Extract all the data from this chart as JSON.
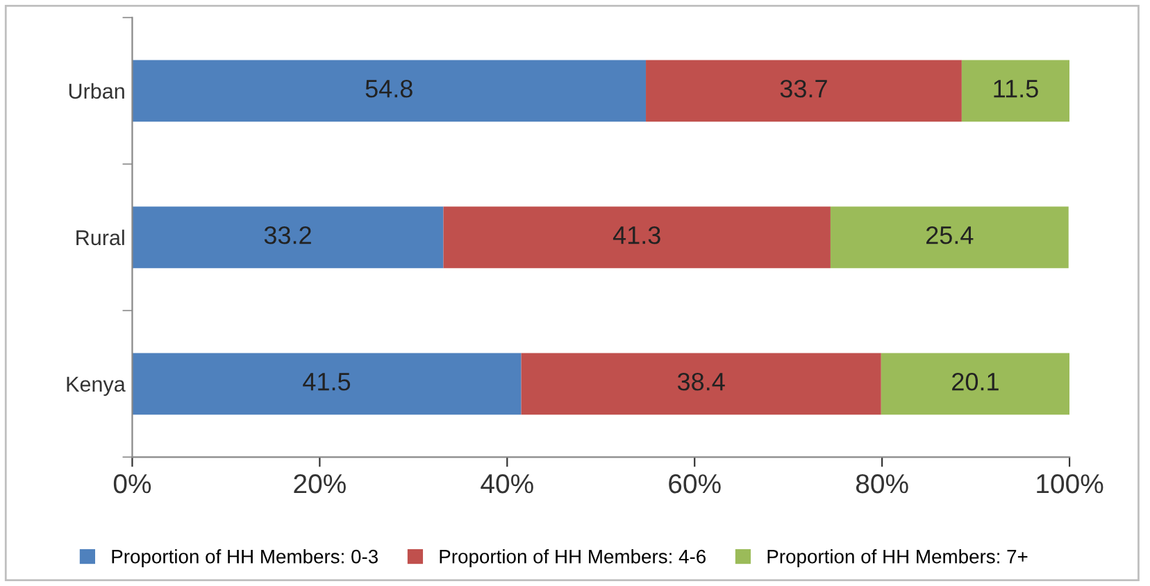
{
  "chart_data": {
    "type": "bar",
    "orientation": "horizontal",
    "stacked": true,
    "categories": [
      "Urban",
      "Rural",
      "Kenya"
    ],
    "series": [
      {
        "name": "Proportion of HH Members: 0-3",
        "color": "#4f81bd",
        "values": [
          54.8,
          33.2,
          41.5
        ]
      },
      {
        "name": "Proportion of HH Members: 4-6",
        "color": "#c0504d",
        "values": [
          33.7,
          41.3,
          38.4
        ]
      },
      {
        "name": "Proportion of HH Members: 7+",
        "color": "#9bbb59",
        "values": [
          11.5,
          25.4,
          20.1
        ]
      }
    ],
    "xlim": [
      0,
      100
    ],
    "xticks": [
      {
        "value": 0,
        "label": "0%"
      },
      {
        "value": 20,
        "label": "20%"
      },
      {
        "value": 40,
        "label": "40%"
      },
      {
        "value": 60,
        "label": "60%"
      },
      {
        "value": 80,
        "label": "80%"
      },
      {
        "value": 100,
        "label": "100%"
      }
    ],
    "data_labels": true,
    "legend": "bottom",
    "grid": false
  }
}
